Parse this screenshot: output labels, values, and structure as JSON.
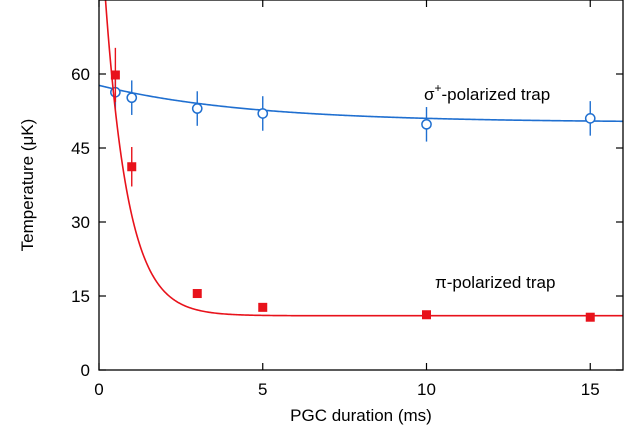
{
  "chart_data": {
    "type": "scatter",
    "xlabel": "PGC duration (ms)",
    "ylabel": "Temperature (μK)",
    "xlim": [
      0,
      16
    ],
    "ylim": [
      0,
      75
    ],
    "xticks": [
      0,
      5,
      10,
      15
    ],
    "yticks": [
      0,
      15,
      30,
      45,
      60
    ],
    "grid": false,
    "legend": "none",
    "series": [
      {
        "label_main": "σ",
        "label_sup": "+",
        "label_rest": "-polarized trap",
        "color": "#1f6fd0",
        "marker": "open-circle",
        "x": [
          0.5,
          1,
          3,
          5,
          10,
          15
        ],
        "y": [
          56.3,
          55.2,
          53.0,
          52.0,
          49.8,
          51.0
        ],
        "err": [
          3.5,
          3.5,
          3.5,
          3.5,
          3.5,
          3.5
        ],
        "fit": {
          "model": "exponential-decay",
          "offset": 50.2,
          "amplitude": 7.5,
          "tau": 4.5
        }
      },
      {
        "label_main": "π",
        "label_sup": "",
        "label_rest": "-polarized trap",
        "color": "#e8121b",
        "marker": "filled-square",
        "x": [
          0.5,
          1,
          3,
          5,
          10,
          15
        ],
        "y": [
          59.8,
          41.2,
          15.5,
          12.7,
          11.2,
          10.7
        ],
        "err": [
          5.5,
          4.0,
          0,
          0,
          0,
          0
        ],
        "fit": {
          "model": "exponential-decay",
          "offset": 11.0,
          "amplitude": 85.0,
          "tau": 0.7
        }
      }
    ]
  }
}
